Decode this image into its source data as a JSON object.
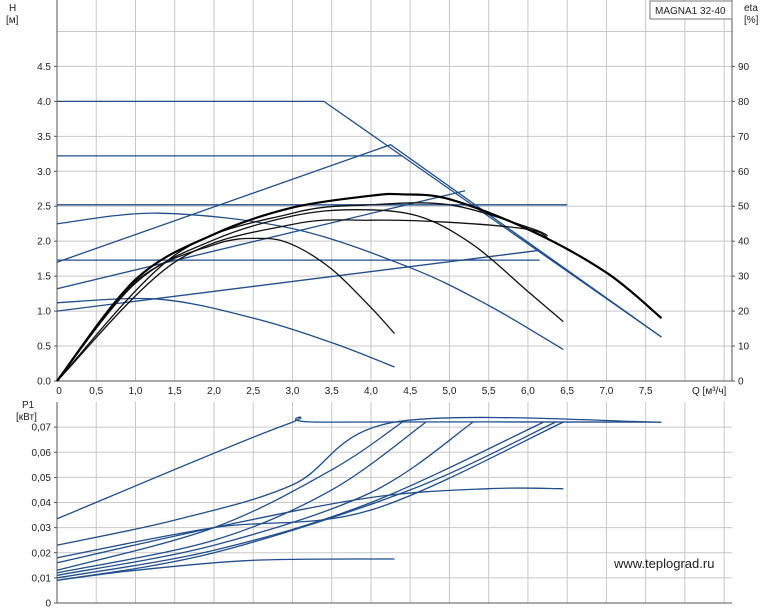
{
  "model": "MAGNA1 32-40",
  "watermark": "www.teplograd.ru",
  "colors": {
    "curve_blue": "#1f4e8c",
    "curve_black": "#111111",
    "grid": "#c8c8c8"
  },
  "chart_data": [
    {
      "type": "line",
      "ylabel_name": "H",
      "ylabel_unit": "[м]",
      "y2label_name": "eta",
      "y2label_unit": "[%]",
      "xlabel": "Q [м³/ч]",
      "xlim": [
        0,
        8.6
      ],
      "ylim": [
        0,
        5.45
      ],
      "y2lim": [
        0,
        109
      ],
      "xticks": [
        "0",
        "0,5",
        "1,0",
        "1,5",
        "2,0",
        "2,5",
        "3,0",
        "3,5",
        "4,0",
        "4,5",
        "5,0",
        "5,5",
        "6,0",
        "6,5",
        "7,0",
        "7,5"
      ],
      "xtick_values": [
        0,
        0.5,
        1.0,
        1.5,
        2.0,
        2.5,
        3.0,
        3.5,
        4.0,
        4.5,
        5.0,
        5.5,
        6.0,
        6.5,
        7.0,
        7.5
      ],
      "yticks": [
        "0.0",
        "0.5",
        "1.0",
        "1.5",
        "2.0",
        "2.5",
        "3.0",
        "3.5",
        "4.0",
        "4.5"
      ],
      "ytick_values": [
        0,
        0.5,
        1.0,
        1.5,
        2.0,
        2.5,
        3.0,
        3.5,
        4.0,
        4.5
      ],
      "y2ticks": [
        "0",
        "10",
        "20",
        "30",
        "40",
        "50",
        "60",
        "70",
        "80",
        "90"
      ],
      "y2tick_values": [
        0,
        10,
        20,
        30,
        40,
        50,
        60,
        70,
        80,
        90
      ],
      "grid": true,
      "series": [
        {
          "color": "blue",
          "x": [
            0,
            3.4,
            7.7
          ],
          "y": [
            4.0,
            4.0,
            0.63
          ]
        },
        {
          "color": "blue",
          "x": [
            0,
            4.4
          ],
          "y": [
            3.22,
            3.22
          ]
        },
        {
          "color": "blue",
          "x": [
            0,
            6.5
          ],
          "y": [
            2.52,
            2.52
          ]
        },
        {
          "color": "blue",
          "x": [
            0,
            6.15
          ],
          "y": [
            1.73,
            1.73
          ]
        },
        {
          "color": "blue",
          "x": [
            0,
            4.25,
            7.7
          ],
          "y": [
            1.7,
            3.38,
            0.63
          ]
        },
        {
          "color": "blue",
          "x": [
            0,
            5.2
          ],
          "y": [
            1.32,
            2.72
          ]
        },
        {
          "color": "blue",
          "x": [
            0,
            6.15
          ],
          "y": [
            1.0,
            1.87
          ]
        },
        {
          "color": "blue",
          "x": [
            0,
            1.3,
            3.0,
            4.5,
            5.5,
            6.45
          ],
          "y": [
            2.25,
            2.4,
            2.18,
            1.62,
            1.08,
            0.45
          ]
        },
        {
          "color": "blue",
          "x": [
            0,
            1.3,
            2.5,
            3.5,
            4.3
          ],
          "y": [
            1.12,
            1.17,
            0.9,
            0.55,
            0.2
          ]
        },
        {
          "color": "black",
          "x": [
            0,
            1.0,
            2.0,
            2.6,
            3.0,
            3.5,
            4.0,
            4.3
          ],
          "y": [
            0,
            1.42,
            1.95,
            2.04,
            1.95,
            1.6,
            1.05,
            0.68
          ]
        },
        {
          "color": "black",
          "x": [
            0,
            1.0,
            2.0,
            3.0,
            3.8,
            4.6,
            5.3,
            6.0,
            6.45
          ],
          "y": [
            0,
            1.4,
            2.02,
            2.36,
            2.45,
            2.36,
            1.95,
            1.28,
            0.85
          ]
        },
        {
          "color": "black",
          "x": [
            0,
            1.5,
            3.0,
            4.0,
            5.0,
            6.0,
            6.25
          ],
          "y": [
            0,
            1.7,
            2.24,
            2.3,
            2.27,
            2.17,
            2.05
          ]
        },
        {
          "color": "black",
          "x": [
            0,
            1.5,
            3.0,
            4.0,
            5.0,
            6.0,
            6.25
          ],
          "y": [
            0,
            1.8,
            2.4,
            2.52,
            2.52,
            2.2,
            2.08
          ]
        },
        {
          "color": "black-bold",
          "x": [
            0,
            1.0,
            2.0,
            3.0,
            4.0,
            4.4,
            5.0,
            6.0,
            7.0,
            7.7
          ],
          "y": [
            0,
            1.45,
            2.1,
            2.48,
            2.65,
            2.67,
            2.6,
            2.17,
            1.55,
            0.9
          ]
        }
      ]
    },
    {
      "type": "line",
      "ylabel_name": "P1",
      "ylabel_unit": "[кВт]",
      "xlim": [
        0,
        8.6
      ],
      "ylim": [
        0,
        0.08
      ],
      "yticks": [
        "0",
        "0,01",
        "0,02",
        "0,03",
        "0,04",
        "0,05",
        "0,06",
        "0,07"
      ],
      "ytick_values": [
        0,
        0.01,
        0.02,
        0.03,
        0.04,
        0.05,
        0.06,
        0.07
      ],
      "grid": true,
      "series": [
        {
          "color": "blue",
          "x": [
            0,
            2.9,
            3.4,
            7.7
          ],
          "y": [
            0.0335,
            0.0708,
            0.072,
            0.072
          ]
        },
        {
          "color": "blue",
          "x": [
            0,
            1.5,
            3.0,
            4.3,
            7.7
          ],
          "y": [
            0.023,
            0.033,
            0.047,
            0.072,
            0.072
          ]
        },
        {
          "color": "blue",
          "x": [
            0,
            2.0,
            3.5,
            4.4
          ],
          "y": [
            0.013,
            0.03,
            0.053,
            0.072
          ]
        },
        {
          "color": "blue",
          "x": [
            0,
            2.0,
            3.5,
            4.7
          ],
          "y": [
            0.012,
            0.025,
            0.045,
            0.072
          ]
        },
        {
          "color": "blue",
          "x": [
            0,
            2.0,
            4.0,
            5.3
          ],
          "y": [
            0.011,
            0.023,
            0.044,
            0.072
          ]
        },
        {
          "color": "blue",
          "x": [
            0,
            2.0,
            4.0,
            6.2
          ],
          "y": [
            0.01,
            0.021,
            0.04,
            0.072
          ]
        },
        {
          "color": "blue",
          "x": [
            0,
            2.0,
            4.5,
            6.35
          ],
          "y": [
            0.009,
            0.02,
            0.045,
            0.072
          ]
        },
        {
          "color": "blue",
          "x": [
            0,
            2.0,
            4.0,
            6.45
          ],
          "y": [
            0.018,
            0.03,
            0.037,
            0.072
          ]
        },
        {
          "color": "blue",
          "x": [
            0,
            2.0,
            4.0,
            5.5,
            6.45
          ],
          "y": [
            0.016,
            0.03,
            0.042,
            0.0455,
            0.0455
          ]
        },
        {
          "color": "blue",
          "x": [
            0,
            1.0,
            2.5,
            4.3
          ],
          "y": [
            0.009,
            0.013,
            0.017,
            0.0175
          ]
        }
      ]
    }
  ]
}
